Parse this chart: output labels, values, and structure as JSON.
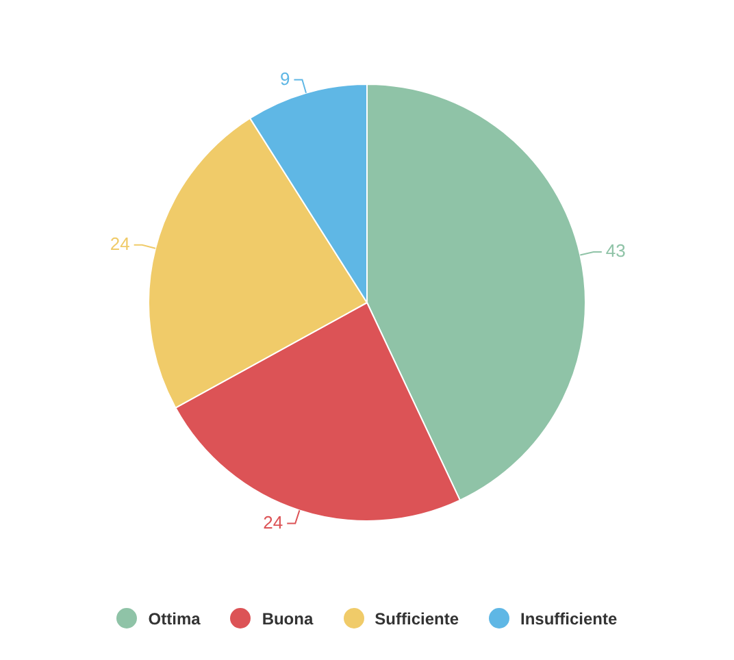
{
  "chart_data": {
    "type": "pie",
    "categories": [
      "Ottima",
      "Buona",
      "Sufficiente",
      "Insufficiente"
    ],
    "values": [
      43,
      24,
      24,
      9
    ],
    "colors": [
      "#8fc3a7",
      "#dc5356",
      "#f0cb69",
      "#5fb7e5"
    ],
    "data_labels": true,
    "legend": "bottom"
  }
}
